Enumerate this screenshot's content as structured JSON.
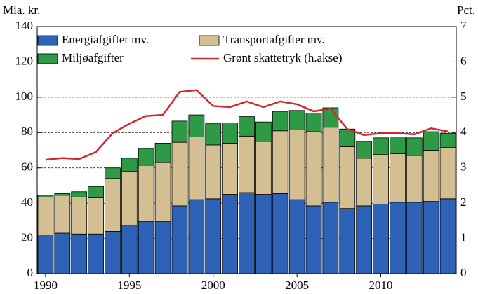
{
  "chart_data": {
    "type": "stacked_bar_line",
    "y_label": "Mia. kr.",
    "y2_label": "Pct.",
    "x": [
      1990,
      1991,
      1992,
      1993,
      1994,
      1995,
      1996,
      1997,
      1998,
      1999,
      2000,
      2001,
      2002,
      2003,
      2004,
      2005,
      2006,
      2007,
      2008,
      2009,
      2010,
      2011,
      2012,
      2013,
      2014
    ],
    "xlim": [
      1989.5,
      2014.5
    ],
    "xticks": [
      1990,
      1995,
      2000,
      2005,
      2010
    ],
    "ylim": [
      0,
      140
    ],
    "yticks": [
      0,
      20,
      40,
      60,
      80,
      100,
      120,
      140
    ],
    "y2lim": [
      0,
      7
    ],
    "y2ticks": [
      0,
      1,
      2,
      3,
      4,
      5,
      6,
      7
    ],
    "grid": true,
    "series": [
      {
        "name": "Energiafgifter mv.",
        "color": "#2e62b7",
        "values": [
          22,
          23,
          22.5,
          22.5,
          24,
          27.5,
          29.5,
          29.5,
          38.5,
          42,
          42.5,
          45,
          46,
          45,
          45.5,
          42,
          38.5,
          40.5,
          37,
          38.5,
          39.5,
          40.5,
          40.5,
          41,
          42.5
        ]
      },
      {
        "name": "Transportafgifter mv.",
        "color": "#d4bf93",
        "values": [
          21.5,
          21.5,
          21,
          20.5,
          30,
          30.5,
          32,
          33.5,
          36,
          35.5,
          30.5,
          29,
          32,
          30,
          35.5,
          39.5,
          42,
          42.5,
          35,
          27,
          28,
          27.5,
          26.5,
          29,
          29
        ]
      },
      {
        "name": "Miljøafgifter",
        "color": "#2e9a46",
        "values": [
          1,
          1,
          3,
          6.5,
          6,
          7.5,
          9.5,
          11,
          12,
          12.5,
          12,
          11.5,
          11,
          11,
          11,
          11,
          10.5,
          11,
          10,
          9.5,
          9.5,
          9.5,
          10,
          10.5,
          8
        ]
      },
      {
        "name": "Grønt skattetryk (h.akse)",
        "color": "#d0282e",
        "axis": "y2",
        "type": "line",
        "values": [
          3.23,
          3.28,
          3.25,
          3.45,
          3.98,
          4.25,
          4.47,
          4.5,
          5.15,
          5.2,
          4.75,
          4.72,
          4.88,
          4.72,
          4.88,
          4.8,
          4.6,
          4.68,
          4.1,
          3.93,
          3.98,
          3.98,
          3.95,
          4.12,
          4.03
        ]
      }
    ]
  }
}
